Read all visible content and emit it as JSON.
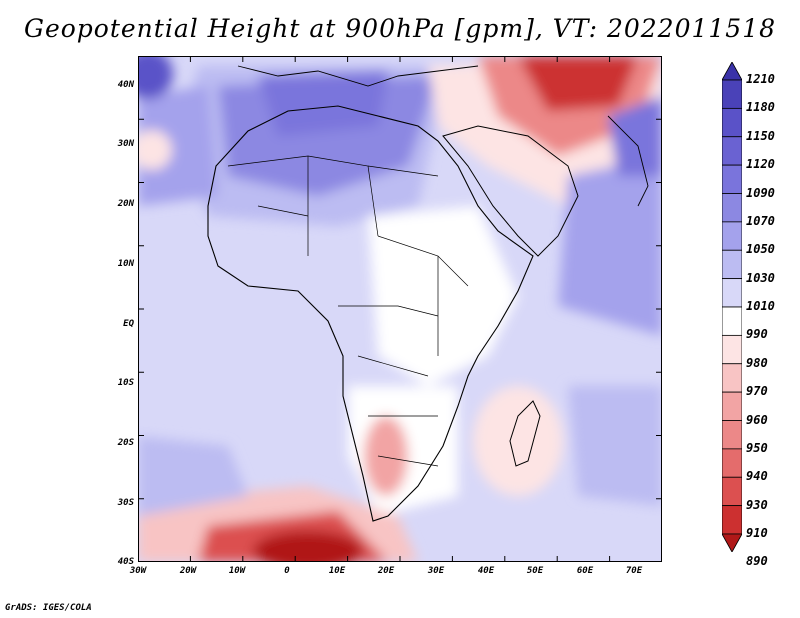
{
  "title": "Geopotential Height at 900hPa [gpm], VT: 2022011518",
  "credit": "GrADS: IGES/COLA",
  "lat_labels": [
    "40N",
    "30N",
    "20N",
    "10N",
    "EQ",
    "10S",
    "20S",
    "30S",
    "40S"
  ],
  "lon_labels": [
    "30W",
    "20W",
    "10W",
    "0",
    "10E",
    "20E",
    "30E",
    "40E",
    "50E",
    "60E",
    "70E"
  ],
  "colorbar": {
    "levels": [
      "1210",
      "1180",
      "1150",
      "1120",
      "1090",
      "1070",
      "1050",
      "1030",
      "1010",
      "990",
      "980",
      "970",
      "960",
      "950",
      "940",
      "930",
      "910",
      "890"
    ],
    "colors": [
      "#3a32a8",
      "#4a42b8",
      "#5a52c8",
      "#6a62d2",
      "#7a74dc",
      "#8c88e2",
      "#a4a2ec",
      "#bcbcf2",
      "#d8d8f8",
      "#ffffff",
      "#fde4e4",
      "#f8c4c4",
      "#f2a4a4",
      "#ec8888",
      "#e46c6c",
      "#dc5050",
      "#cc3030",
      "#b01818"
    ]
  }
}
